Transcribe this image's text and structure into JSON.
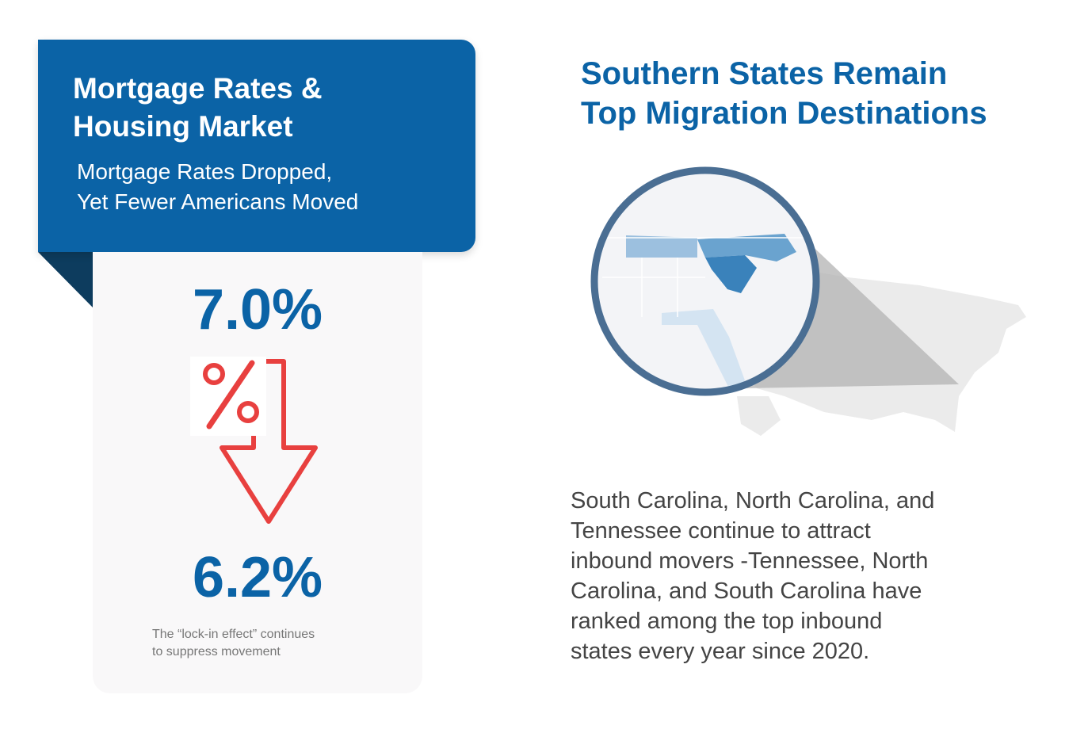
{
  "left_panel": {
    "title_lines": [
      "Mortgage Rates &",
      "Housing Market"
    ],
    "subtitle_lines": [
      "Mortgage Rates Dropped,",
      "Yet Fewer Americans Moved"
    ],
    "rate_before": "7.0%",
    "rate_after": "6.2%",
    "note_lines": [
      "The “lock-in effect” continues",
      "to suppress movement"
    ]
  },
  "right_panel": {
    "title_lines": [
      "Southern States Remain",
      "Top Migration Destinations"
    ],
    "body_lines": [
      "South Carolina, North Carolina, and",
      "Tennessee continue to attract",
      "inbound movers -Tennessee, North",
      "Carolina, and South Carolina have",
      "ranked among the top inbound",
      "states every year since 2020."
    ]
  }
}
